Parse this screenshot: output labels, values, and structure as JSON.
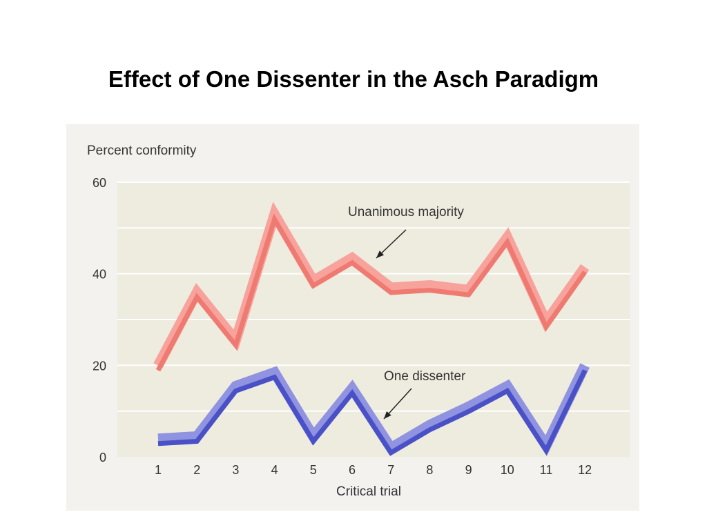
{
  "slide": {
    "title": "Effect of One Dissenter in the Asch Paradigm"
  },
  "chart_data": {
    "type": "line",
    "ylabel": "Percent conformity",
    "xlabel": "Critical trial",
    "ylim": [
      0,
      60
    ],
    "yticks": [
      "0",
      "20",
      "40",
      "60"
    ],
    "categories": [
      "1",
      "2",
      "3",
      "4",
      "5",
      "6",
      "7",
      "8",
      "9",
      "10",
      "11",
      "12"
    ],
    "grid": true,
    "series": [
      {
        "name": "Unanimous majority",
        "color_light": "#f7a39c",
        "color_dark": "#ef7a72",
        "values": [
          19.5,
          35.5,
          25,
          52.5,
          38,
          43,
          36.5,
          37,
          36,
          47.5,
          29,
          41
        ]
      },
      {
        "name": "One dissenter",
        "color_light": "#8f93e0",
        "color_dark": "#4a50c6",
        "values": [
          3.5,
          4,
          15,
          18,
          4,
          14.5,
          1.5,
          6.5,
          10.5,
          15,
          2,
          19.5
        ]
      }
    ]
  }
}
